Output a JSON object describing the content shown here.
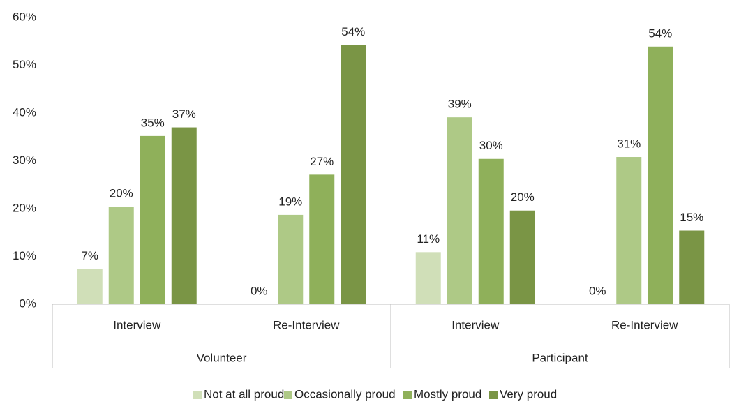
{
  "chart_data": {
    "type": "bar",
    "groups": [
      {
        "name": "Volunteer",
        "categories": [
          "Interview",
          "Re-Interview"
        ]
      },
      {
        "name": "Participant",
        "categories": [
          "Interview",
          "Re-Interview"
        ]
      }
    ],
    "series": [
      {
        "name": "Not at all proud",
        "color": "#d0dfb8",
        "values": [
          7.4,
          0,
          10.9,
          0
        ],
        "value_labels": [
          "7%",
          "0%",
          "11%",
          "0%"
        ]
      },
      {
        "name": "Occasionally proud",
        "color": "#aec986",
        "values": [
          20.4,
          18.7,
          39.1,
          30.8
        ],
        "value_labels": [
          "20%",
          "19%",
          "39%",
          "31%"
        ]
      },
      {
        "name": "Mostly proud",
        "color": "#8fb05a",
        "values": [
          35.2,
          27.1,
          30.4,
          53.9
        ],
        "value_labels": [
          "35%",
          "27%",
          "30%",
          "54%"
        ]
      },
      {
        "name": "Very proud",
        "color": "#7a9545",
        "values": [
          37.0,
          54.2,
          19.6,
          15.4
        ],
        "value_labels": [
          "37%",
          "54%",
          "20%",
          "15%"
        ]
      }
    ],
    "ylim": [
      0,
      60
    ],
    "yticks": [
      {
        "value": 0,
        "label": "0%"
      },
      {
        "value": 10,
        "label": "10%"
      },
      {
        "value": 20,
        "label": "20%"
      },
      {
        "value": 30,
        "label": "30%"
      },
      {
        "value": 40,
        "label": "40%"
      },
      {
        "value": 50,
        "label": "50%"
      },
      {
        "value": 60,
        "label": "60%"
      }
    ],
    "grid": false,
    "legend": "bottom"
  }
}
